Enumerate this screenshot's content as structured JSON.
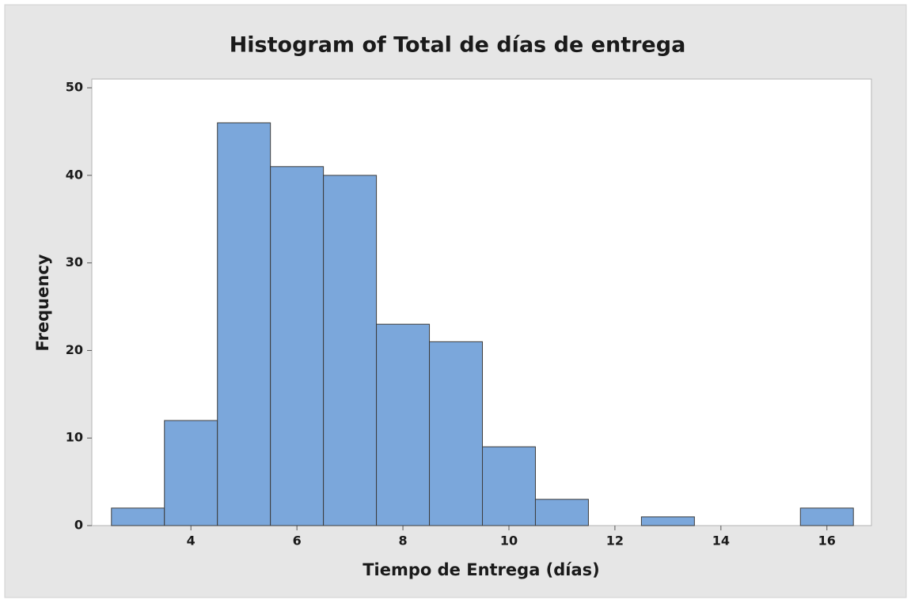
{
  "chart_data": {
    "type": "histogram",
    "title": "Histogram of Total de días de entrega",
    "xlabel": "Tiempo de Entrega (días)",
    "ylabel": "Frequency",
    "bins": [
      2.5,
      3.5,
      4.5,
      5.5,
      6.5,
      7.5,
      8.5,
      9.5,
      10.5,
      11.5,
      12.5,
      13.5,
      14.5,
      15.5,
      16.5
    ],
    "values": [
      2,
      12,
      46,
      41,
      40,
      23,
      21,
      9,
      3,
      0,
      1,
      0,
      0,
      2
    ],
    "color": "#7ba7db",
    "xlim": [
      2.13,
      16.84
    ],
    "ylim": [
      0,
      51
    ],
    "xticks": [
      4,
      6,
      8,
      10,
      12,
      14,
      16
    ],
    "yticks": [
      0,
      10,
      20,
      30,
      40,
      50
    ]
  }
}
